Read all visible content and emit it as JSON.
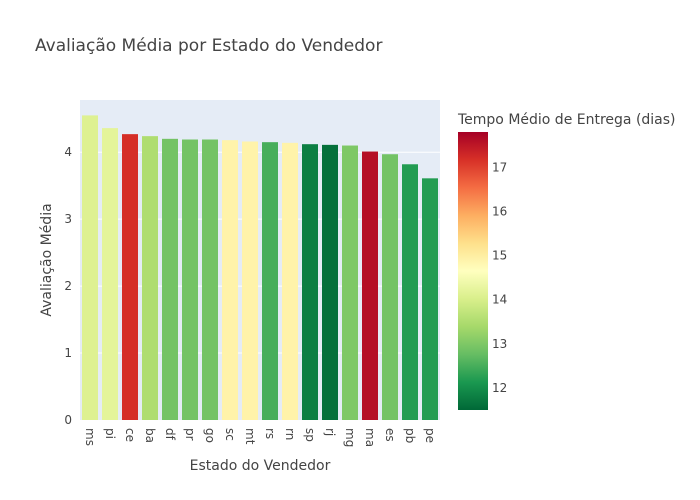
{
  "chart_data": {
    "type": "bar",
    "title": "Avaliação Média por Estado do Vendedor",
    "xlabel": "Estado do Vendedor",
    "ylabel": "Avaliação Média",
    "ylim": [
      0,
      4.78
    ],
    "yticks": [
      "0",
      "1",
      "2",
      "3",
      "4"
    ],
    "grid": true,
    "categories": [
      "ms",
      "pi",
      "ce",
      "ba",
      "df",
      "pr",
      "go",
      "sc",
      "mt",
      "rs",
      "rn",
      "sp",
      "rj",
      "mg",
      "ma",
      "es",
      "pb",
      "pe"
    ],
    "values": [
      4.55,
      4.36,
      4.27,
      4.24,
      4.2,
      4.19,
      4.19,
      4.18,
      4.16,
      4.15,
      4.14,
      4.12,
      4.11,
      4.1,
      4.01,
      3.97,
      3.82,
      3.61
    ],
    "color_values": [
      14.1,
      14.2,
      17.2,
      13.5,
      12.9,
      12.9,
      12.9,
      14.9,
      14.9,
      12.5,
      14.9,
      11.8,
      11.6,
      13.0,
      17.6,
      12.9,
      12.2,
      12.2
    ],
    "colorbar": {
      "title": "Tempo Médio de Entrega (dias)",
      "range": [
        11.5,
        17.8
      ],
      "ticks": [
        "12",
        "13",
        "14",
        "15",
        "16",
        "17"
      ],
      "colorscale": "RdYlGn reversed",
      "stops": [
        "#006837",
        "#1a9850",
        "#66bd63",
        "#a6d96a",
        "#d9ef8b",
        "#ffffbf",
        "#fee08b",
        "#fdae61",
        "#f46d43",
        "#d73027",
        "#a50026"
      ]
    }
  }
}
